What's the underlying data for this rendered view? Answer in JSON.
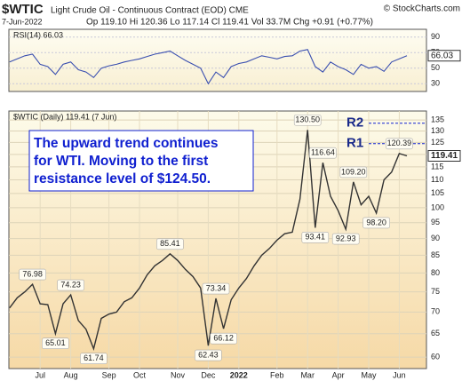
{
  "header": {
    "symbol": "$WTIC",
    "name": "Light Crude Oil - Continuous Contract (EOD) CME",
    "source": "© StockCharts.com",
    "date": "7-Jun-2022",
    "quote": "Op 119.10 Hi 120.36 Lo 117.14 Cl 119.41 Vol 33.7M Chg +0.91 (+0.77%)"
  },
  "note_lines": [
    "The upward trend continues",
    "for WTI.  Moving to the first",
    "resistance level of $124.50."
  ],
  "chart_data": [
    {
      "type": "line",
      "legend": "RSI(14) 66.03",
      "color": "#3a4fb0",
      "values": [
        58,
        62,
        66,
        68,
        55,
        52,
        42,
        55,
        58,
        48,
        45,
        38,
        50,
        53,
        55,
        58,
        60,
        62,
        65,
        68,
        70,
        72,
        66,
        60,
        55,
        50,
        30,
        45,
        38,
        52,
        56,
        58,
        62,
        66,
        64,
        62,
        65,
        66,
        72,
        74,
        52,
        45,
        58,
        52,
        48,
        42,
        55,
        50,
        52,
        46,
        58,
        62,
        66.03
      ],
      "ylim": [
        20,
        100
      ],
      "yticks": [
        90,
        70,
        50,
        30
      ],
      "grid": true,
      "last_value": {
        "value": 66.03,
        "label": "66.03"
      }
    },
    {
      "type": "line",
      "legend": "$WTIC (Daily) 119.41 (7 Jun)",
      "color": "#333333",
      "log": true,
      "grid": true,
      "categories": [
        null,
        null,
        null,
        null,
        "Jul",
        null,
        null,
        null,
        "Aug",
        null,
        null,
        null,
        null,
        "Sep",
        null,
        null,
        null,
        "Oct",
        null,
        null,
        null,
        null,
        "Nov",
        null,
        null,
        null,
        "Dec",
        null,
        null,
        null,
        "2022",
        null,
        null,
        null,
        null,
        "Feb",
        null,
        null,
        null,
        "Mar",
        null,
        null,
        null,
        "Apr",
        null,
        null,
        null,
        "May",
        null,
        null,
        null,
        "Jun",
        null
      ],
      "values": [
        71.0,
        73.5,
        75.0,
        76.98,
        72.0,
        71.8,
        65.01,
        72.0,
        74.23,
        68.0,
        66.0,
        61.74,
        68.5,
        69.5,
        70.0,
        72.5,
        73.5,
        76.0,
        79.5,
        82.0,
        83.5,
        85.41,
        83.5,
        81.0,
        79.0,
        76.0,
        62.43,
        73.34,
        66.12,
        73.0,
        76.0,
        78.5,
        82.0,
        85.0,
        87.0,
        89.5,
        91.5,
        92.0,
        103.0,
        130.5,
        93.41,
        116.64,
        104.0,
        99.0,
        92.93,
        109.2,
        101.0,
        104.0,
        98.2,
        110.0,
        113.0,
        120.39,
        119.41
      ],
      "ylim": [
        57.7,
        139.2
      ],
      "yticks": [
        60,
        65,
        70,
        75,
        80,
        85,
        90,
        95,
        100,
        105,
        110,
        115,
        120,
        125,
        130,
        135
      ],
      "last_value": {
        "value": 119.41,
        "label": "119.41"
      },
      "annotations": [
        {
          "value": 76.98,
          "label": "76.98"
        },
        {
          "value": 65.01,
          "label": "65.01"
        },
        {
          "value": 74.23,
          "label": "74.23"
        },
        {
          "value": 61.74,
          "label": "61.74"
        },
        {
          "value": 85.41,
          "label": "85.41"
        },
        {
          "value": 62.43,
          "label": "62.43"
        },
        {
          "value": 73.34,
          "label": "73.34"
        },
        {
          "value": 66.12,
          "label": "66.12"
        },
        {
          "value": 130.5,
          "label": "130.50"
        },
        {
          "value": 93.41,
          "label": "93.41"
        },
        {
          "value": 116.64,
          "label": "116.64"
        },
        {
          "value": 92.93,
          "label": "92.93"
        },
        {
          "value": 109.2,
          "label": "109.20"
        },
        {
          "value": 98.2,
          "label": "98.20"
        },
        {
          "value": 120.39,
          "label": "120.39"
        }
      ],
      "resistance": [
        {
          "label": "R2",
          "value": 133.5
        },
        {
          "label": "R1",
          "value": 124.5
        }
      ]
    }
  ]
}
